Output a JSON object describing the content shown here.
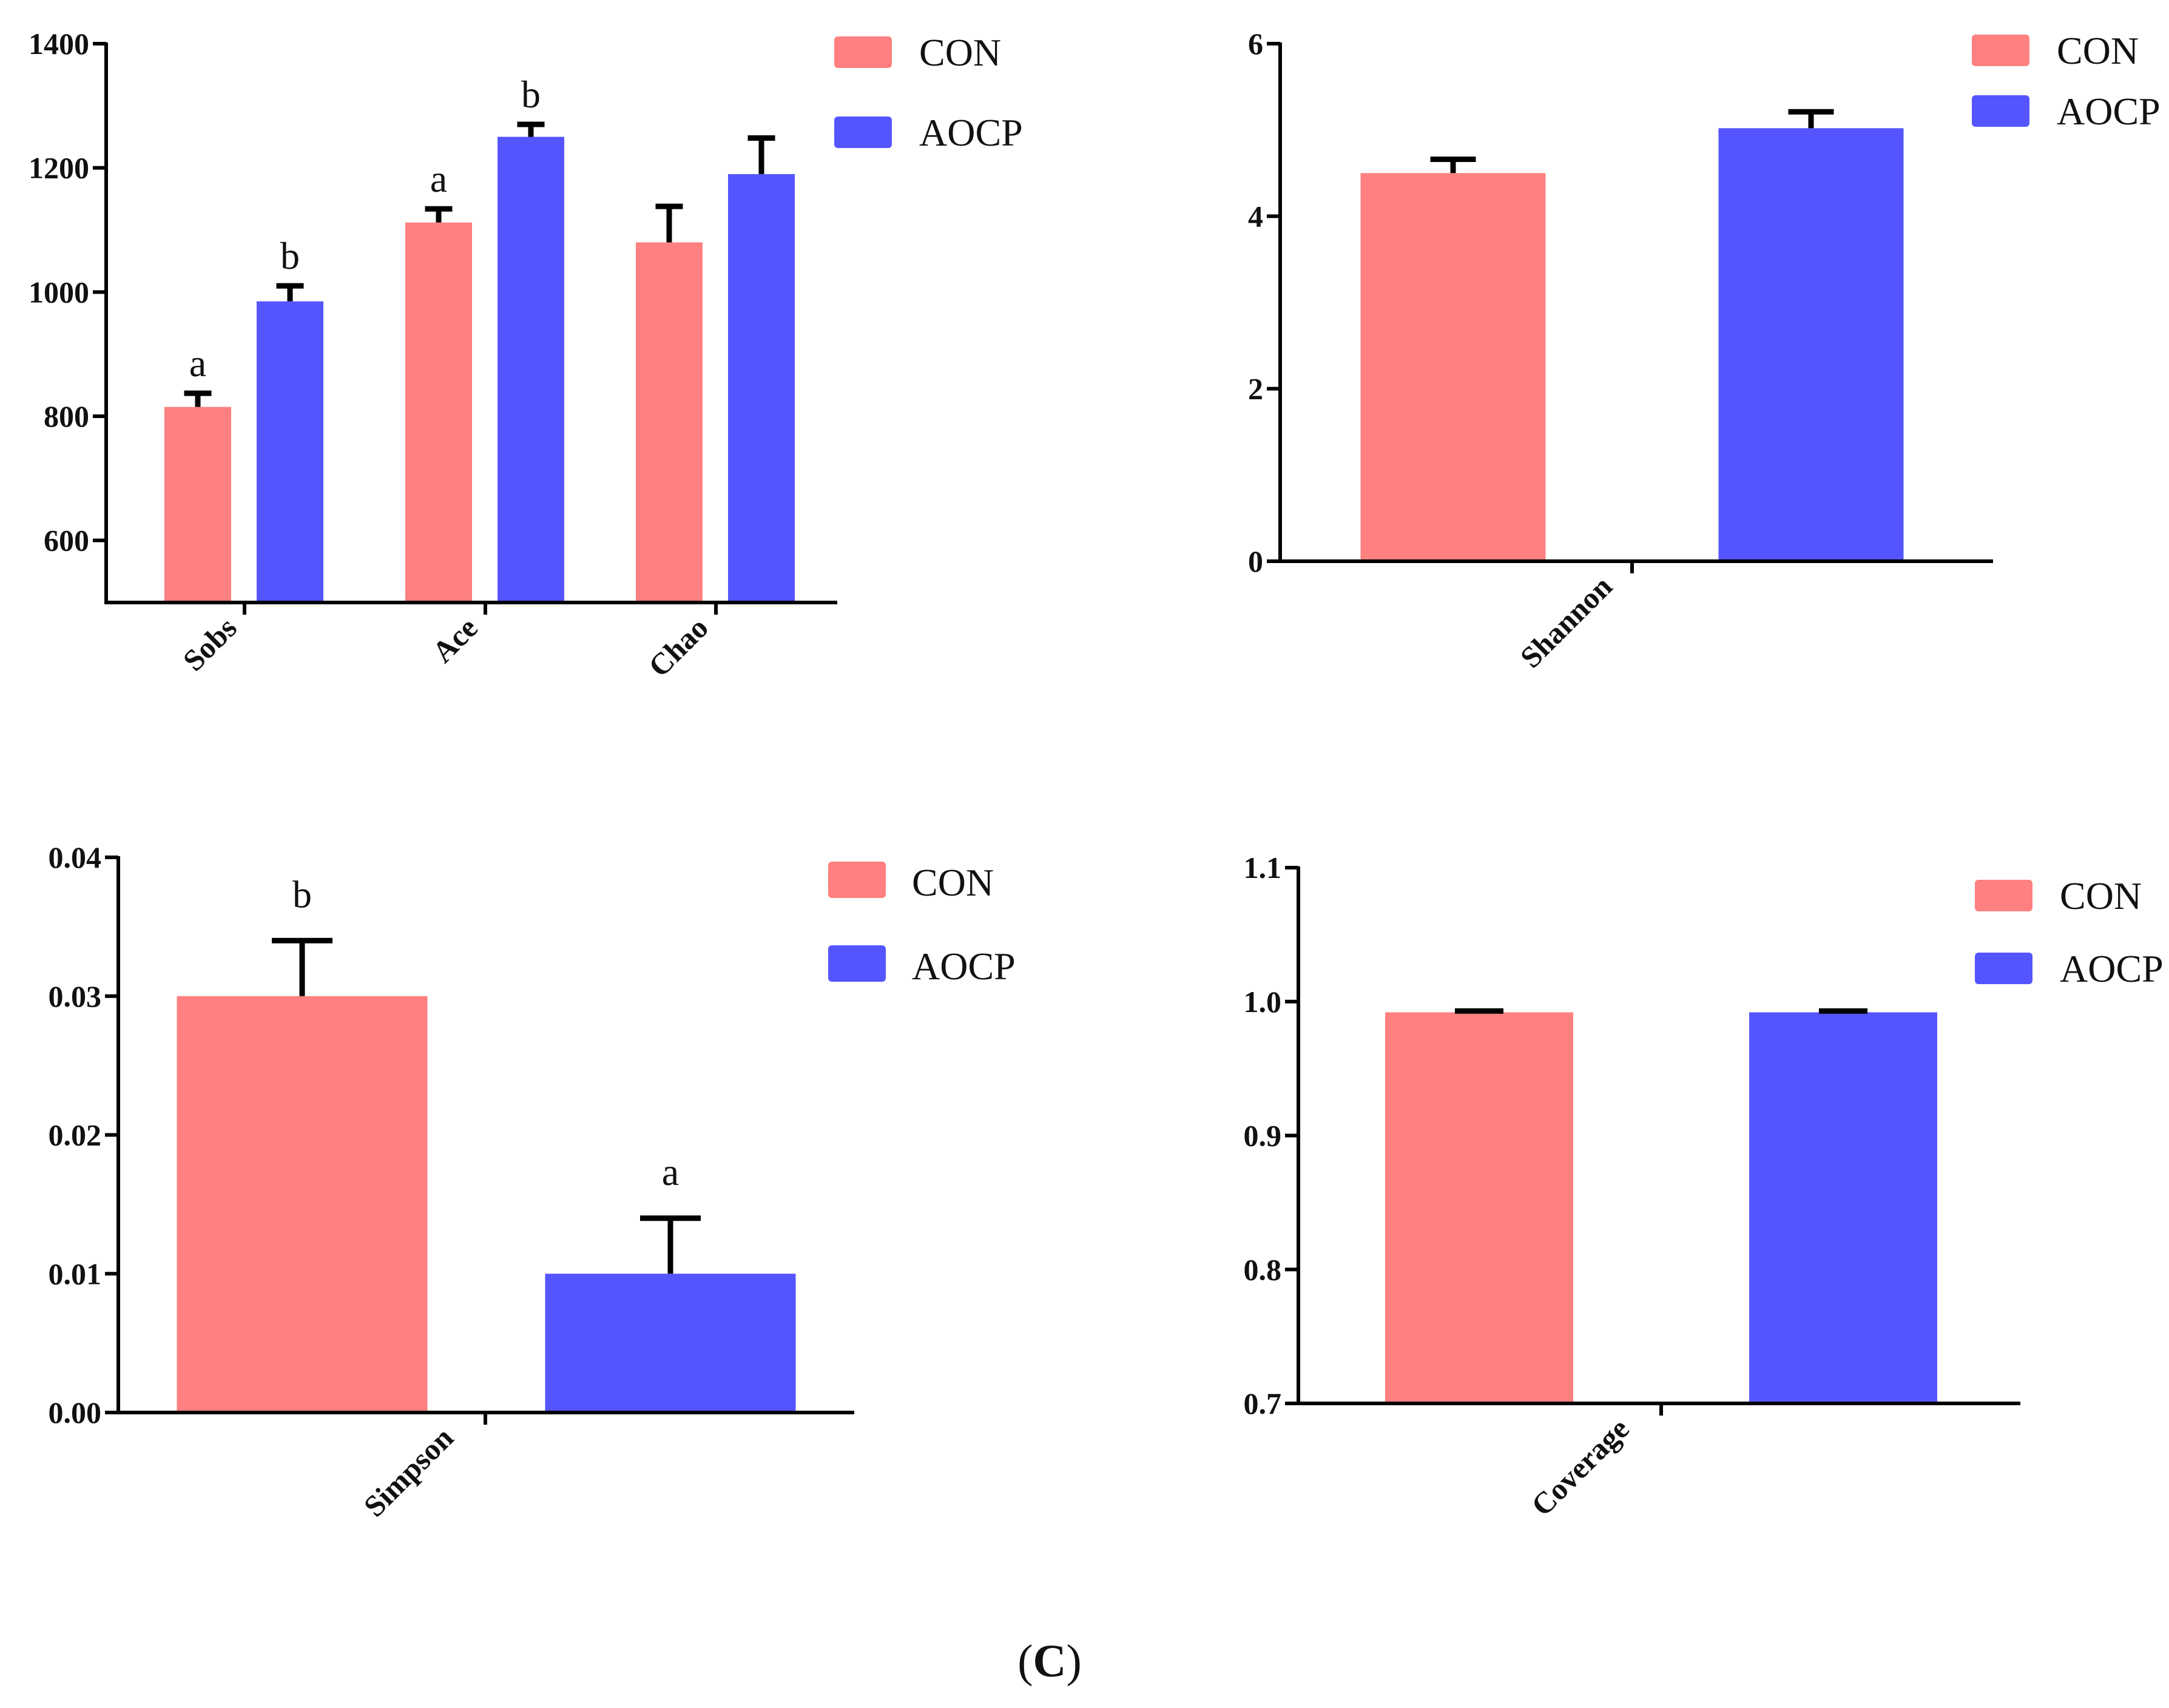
{
  "colors": {
    "CON": "#FF8080",
    "AOCP": "#5555FF",
    "axis": "#000000"
  },
  "caption": {
    "open": "(",
    "letter": "C",
    "close": ")"
  },
  "chart_data": [
    {
      "type": "bar",
      "categories": [
        "Sobs",
        "Ace",
        "Chao"
      ],
      "series": [
        {
          "name": "CON",
          "values": [
            815,
            1112,
            1080
          ],
          "errors": [
            22,
            22,
            58
          ]
        },
        {
          "name": "AOCP",
          "values": [
            985,
            1250,
            1190
          ],
          "errors": [
            25,
            20,
            58
          ]
        }
      ],
      "significance": [
        [
          "a",
          "b"
        ],
        [
          "a",
          "b"
        ],
        [
          "",
          ""
        ]
      ],
      "ylim": [
        500,
        1400
      ],
      "yticks": [
        600,
        800,
        1000,
        1200,
        1400
      ],
      "ytick_labels": [
        "600",
        "800",
        "1000",
        "1200",
        "1400"
      ],
      "legend": [
        "CON",
        "AOCP"
      ],
      "legend_position": "top-right"
    },
    {
      "type": "bar",
      "categories": [
        "Shannon"
      ],
      "series": [
        {
          "name": "CON",
          "values": [
            4.5
          ],
          "errors": [
            0.16
          ]
        },
        {
          "name": "AOCP",
          "values": [
            5.02
          ],
          "errors": [
            0.19
          ]
        }
      ],
      "significance": [
        [
          "",
          ""
        ]
      ],
      "ylim": [
        0,
        6
      ],
      "yticks": [
        0,
        2,
        4,
        6
      ],
      "ytick_labels": [
        "0",
        "2",
        "4",
        "6"
      ],
      "legend": [
        "CON",
        "AOCP"
      ],
      "legend_position": "top-right"
    },
    {
      "type": "bar",
      "categories": [
        "Simpson"
      ],
      "series": [
        {
          "name": "CON",
          "values": [
            0.03
          ],
          "errors": [
            0.004
          ]
        },
        {
          "name": "AOCP",
          "values": [
            0.01
          ],
          "errors": [
            0.004
          ]
        }
      ],
      "significance": [
        [
          "b",
          "a"
        ]
      ],
      "ylim": [
        0,
        0.04
      ],
      "yticks": [
        0,
        0.01,
        0.02,
        0.03,
        0.04
      ],
      "ytick_labels": [
        "0.00",
        "0.01",
        "0.02",
        "0.03",
        "0.04"
      ],
      "legend": [
        "CON",
        "AOCP"
      ],
      "legend_position": "top-right"
    },
    {
      "type": "bar",
      "categories": [
        "Coverage"
      ],
      "series": [
        {
          "name": "CON",
          "values": [
            0.992
          ],
          "errors": [
            0.001
          ]
        },
        {
          "name": "AOCP",
          "values": [
            0.992
          ],
          "errors": [
            0.001
          ]
        }
      ],
      "significance": [
        [
          "",
          ""
        ]
      ],
      "ylim": [
        0.7,
        1.1
      ],
      "yticks": [
        0.7,
        0.8,
        0.9,
        1.0,
        1.1
      ],
      "ytick_labels": [
        "0.7",
        "0.8",
        "0.9",
        "1.0",
        "1.1"
      ],
      "legend": [
        "CON",
        "AOCP"
      ],
      "legend_position": "top-right"
    }
  ]
}
